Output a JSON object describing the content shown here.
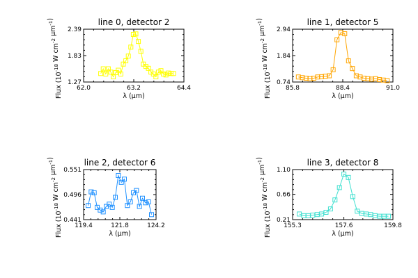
{
  "chart_data": [
    {
      "type": "line",
      "title": "line 0, detector 2",
      "xlabel": "λ (μm)",
      "ylabel": "Flux (10^-18 W cm^-2 μm^-1)",
      "xlim": [
        62.0,
        64.4
      ],
      "ylim": [
        1.27,
        2.39
      ],
      "xticks": [
        "62.0",
        "63.2",
        "64.4"
      ],
      "yticks": [
        "1.27",
        "1.83",
        "2.39"
      ],
      "color": "#ffff00",
      "marker": "square",
      "grid": false,
      "series": [
        {
          "x": [
            62.41,
            62.47,
            62.53,
            62.59,
            62.65,
            62.71,
            62.77,
            62.83,
            62.89,
            62.95,
            63.01,
            63.07,
            63.13,
            63.19,
            63.25,
            63.31,
            63.37,
            63.43,
            63.49,
            63.55,
            63.61,
            63.67,
            63.73,
            63.79,
            63.85,
            63.91,
            63.97,
            64.03,
            64.09,
            64.15
          ],
          "y": [
            1.45,
            1.55,
            1.44,
            1.55,
            1.48,
            1.38,
            1.47,
            1.52,
            1.44,
            1.65,
            1.72,
            1.82,
            2.01,
            2.28,
            2.29,
            2.13,
            1.92,
            1.65,
            1.6,
            1.56,
            1.48,
            1.44,
            1.38,
            1.48,
            1.51,
            1.44,
            1.42,
            1.46,
            1.45,
            1.45
          ]
        }
      ]
    },
    {
      "type": "line",
      "title": "line 1, detector 5",
      "xlabel": "λ (μm)",
      "ylabel": "Flux (10^-18 W cm^-2 μm^-1)",
      "xlim": [
        85.8,
        91.0
      ],
      "ylim": [
        0.74,
        2.94
      ],
      "xticks": [
        "85.8",
        "88.4",
        "91.0"
      ],
      "yticks": [
        "0.74",
        "1.84",
        "2.94"
      ],
      "color": "#ffa500",
      "marker": "square",
      "grid": false,
      "series": [
        {
          "x": [
            86.1,
            86.3,
            86.5,
            86.7,
            86.9,
            87.1,
            87.3,
            87.5,
            87.7,
            87.9,
            88.1,
            88.3,
            88.5,
            88.7,
            88.9,
            89.1,
            89.3,
            89.5,
            89.7,
            89.9,
            90.1,
            90.3,
            90.5,
            90.7
          ],
          "y": [
            0.95,
            0.92,
            0.9,
            0.88,
            0.9,
            0.95,
            0.96,
            0.98,
            1.0,
            1.25,
            2.5,
            2.8,
            2.75,
            1.62,
            1.3,
            1.0,
            0.95,
            0.9,
            0.88,
            0.86,
            0.88,
            0.84,
            0.82,
            0.8
          ]
        }
      ]
    },
    {
      "type": "line",
      "title": "line 2, detector 6",
      "xlabel": "λ (μm)",
      "ylabel": "Flux (10^-18 W cm^-2 μm^-1)",
      "xlim": [
        119.4,
        124.2
      ],
      "ylim": [
        0.441,
        0.551
      ],
      "xticks": [
        "119.4",
        "121.8",
        "124.2"
      ],
      "yticks": [
        "0.441",
        "0.496",
        "0.551"
      ],
      "color": "#1e90ff",
      "marker": "square",
      "grid": false,
      "series": [
        {
          "x": [
            119.7,
            119.9,
            120.1,
            120.3,
            120.5,
            120.7,
            120.9,
            121.1,
            121.3,
            121.5,
            121.7,
            121.9,
            122.1,
            122.3,
            122.5,
            122.7,
            122.9,
            123.1,
            123.3,
            123.5,
            123.7,
            123.9
          ],
          "y": [
            0.472,
            0.502,
            0.5,
            0.468,
            0.462,
            0.458,
            0.47,
            0.475,
            0.468,
            0.49,
            0.538,
            0.523,
            0.53,
            0.472,
            0.48,
            0.5,
            0.505,
            0.47,
            0.488,
            0.478,
            0.48,
            0.452
          ]
        }
      ]
    },
    {
      "type": "line",
      "title": "line 3, detector 8",
      "xlabel": "λ (μm)",
      "ylabel": "Flux (10^-18 W cm^-2 μm^-1)",
      "xlim": [
        155.3,
        159.8
      ],
      "ylim": [
        0.21,
        1.1
      ],
      "xticks": [
        "155.3",
        "157.6",
        "159.8"
      ],
      "yticks": [
        "0.21",
        "0.66",
        "1.10"
      ],
      "color": "#40e0d0",
      "marker": "square",
      "grid": false,
      "series": [
        {
          "x": [
            155.6,
            155.8,
            156.0,
            156.2,
            156.4,
            156.6,
            156.8,
            157.0,
            157.2,
            157.4,
            157.6,
            157.8,
            158.0,
            158.2,
            158.4,
            158.6,
            158.8,
            159.0,
            159.2,
            159.4,
            159.6
          ],
          "y": [
            0.31,
            0.28,
            0.28,
            0.29,
            0.3,
            0.31,
            0.34,
            0.4,
            0.56,
            0.78,
            1.02,
            0.96,
            0.62,
            0.36,
            0.32,
            0.31,
            0.3,
            0.28,
            0.27,
            0.27,
            0.27
          ]
        }
      ]
    }
  ]
}
